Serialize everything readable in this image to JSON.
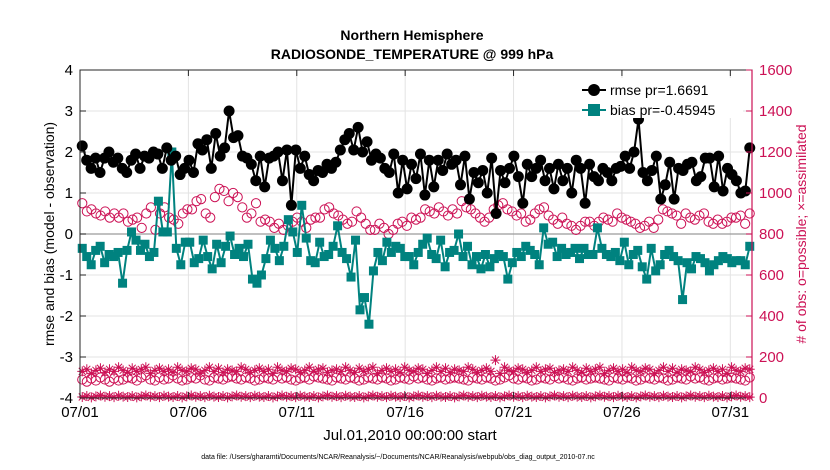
{
  "chart_data": {
    "type": "line",
    "title": "Northern Hemisphere",
    "subtitle": "RADIOSONDE_TEMPERATURE @ 999 hPa",
    "xlabel": "Jul.01,2010 00:00:00 start",
    "ylabel_left": "rmse and bias (model - observation)",
    "ylabel_right": "# of obs: o=possible; ×=assimilated",
    "footer": "data file: /Users/gharamti/Documents/NCAR/Reanalysis/~/Documents/NCAR/Reanalysis/webpub/obs_diag_output_2010-07.nc",
    "x_ticks": [
      "07/01",
      "07/06",
      "07/11",
      "07/16",
      "07/21",
      "07/26",
      "07/31"
    ],
    "x_tick_days": [
      1,
      6,
      11,
      16,
      21,
      26,
      31
    ],
    "xlim_days": [
      1,
      32
    ],
    "ylim_left": [
      -4,
      4
    ],
    "yticks_left": [
      "4",
      "3",
      "2",
      "1",
      "0",
      "-1",
      "-2",
      "-3",
      "-4"
    ],
    "ylim_right": [
      0,
      1600
    ],
    "yticks_right": [
      "1600",
      "1400",
      "1200",
      "1000",
      "800",
      "600",
      "400",
      "200",
      "0"
    ],
    "grid": true,
    "legend_placement": "top-right",
    "colors": {
      "rmse": "#000000",
      "bias": "#00827f",
      "obs": "#cc1155",
      "right_axis": "#cc1155"
    },
    "series": [
      {
        "name": "rmse pr=1.6691",
        "key": "rmse",
        "values": [
          2.15,
          1.8,
          1.6,
          1.85,
          1.5,
          1.85,
          2.0,
          1.75,
          1.85,
          1.6,
          1.5,
          1.8,
          1.95,
          1.6,
          1.9,
          1.85,
          2.0,
          1.95,
          1.6,
          2.1,
          1.8,
          1.9,
          1.45,
          1.6,
          1.8,
          1.5,
          2.2,
          2.05,
          2.3,
          1.6,
          2.45,
          1.9,
          2.1,
          3.0,
          2.35,
          2.4,
          1.9,
          1.85,
          1.7,
          1.3,
          1.9,
          1.15,
          1.85,
          1.9,
          2.0,
          1.3,
          2.05,
          0.7,
          2.05,
          1.6,
          1.9,
          1.45,
          1.3,
          1.55,
          1.5,
          1.7,
          1.6,
          1.75,
          2.05,
          2.3,
          2.45,
          2.05,
          2.6,
          2.0,
          2.25,
          1.8,
          1.95,
          1.85,
          1.6,
          1.5,
          1.95,
          1.0,
          1.8,
          1.1,
          1.7,
          1.35,
          1.95,
          0.95,
          1.8,
          1.15,
          1.8,
          1.55,
          1.95,
          1.7,
          1.8,
          1.2,
          1.9,
          0.85,
          1.5,
          1.25,
          1.55,
          1.0,
          1.85,
          0.5,
          1.55,
          1.25,
          1.6,
          1.9,
          1.4,
          0.75,
          1.7,
          1.4,
          1.6,
          1.8,
          1.3,
          1.6,
          1.1,
          1.7,
          1.3,
          1.6,
          1.0,
          1.8,
          1.6,
          0.75,
          1.7,
          1.4,
          1.3,
          1.6,
          1.5,
          1.3,
          1.6,
          1.65,
          1.9,
          1.6,
          2.0,
          2.8,
          1.5,
          1.3,
          1.55,
          1.9,
          0.85,
          1.2,
          1.75,
          0.85,
          1.6,
          1.55,
          1.7,
          1.75,
          1.3,
          1.4,
          1.85,
          1.85,
          1.15,
          1.9,
          1.05,
          1.6,
          1.45,
          1.3,
          1.0,
          1.05,
          2.1
        ]
      },
      {
        "name": "bias pr=-0.45945",
        "key": "bias",
        "values": [
          -0.35,
          -0.55,
          -0.75,
          -0.4,
          -0.3,
          -0.7,
          -0.5,
          -0.55,
          -0.45,
          -1.2,
          -0.4,
          0.05,
          -0.15,
          -0.4,
          -0.25,
          -0.55,
          -0.45,
          0.8,
          0.05,
          0.05,
          2.0,
          -0.35,
          -0.75,
          -0.2,
          -0.2,
          -0.7,
          -0.6,
          -0.15,
          -0.55,
          -0.85,
          -0.25,
          -0.7,
          -0.3,
          -0.05,
          -0.5,
          -0.35,
          -0.55,
          -0.25,
          -1.1,
          -1.2,
          -1.0,
          -0.6,
          -0.15,
          -0.35,
          -0.65,
          -0.3,
          0.35,
          0.05,
          -0.45,
          0.7,
          -0.1,
          -0.65,
          -0.7,
          -0.2,
          -0.55,
          -0.5,
          -0.3,
          0.2,
          -0.45,
          -0.6,
          -1.05,
          -0.15,
          -1.85,
          -1.55,
          -2.2,
          -0.9,
          -0.45,
          -0.65,
          -0.2,
          -0.45,
          -0.3,
          -0.35,
          -0.55,
          -0.55,
          -0.75,
          -0.45,
          -0.25,
          -0.1,
          -0.5,
          -0.6,
          -0.15,
          -0.8,
          -0.45,
          -0.4,
          0.0,
          -0.55,
          -0.3,
          -0.75,
          -0.55,
          -0.85,
          -0.5,
          -0.8,
          -0.6,
          -0.5,
          -0.55,
          -1.1,
          -0.7,
          -0.45,
          -0.55,
          -0.3,
          -0.4,
          -0.5,
          -0.75,
          0.15,
          -0.25,
          -0.2,
          -0.55,
          -0.35,
          -0.5,
          -0.45,
          -0.35,
          -0.6,
          -0.35,
          -0.5,
          -0.5,
          0.15,
          -0.35,
          -0.5,
          -0.55,
          -0.45,
          -0.65,
          -0.2,
          -0.75,
          -0.5,
          -0.4,
          -0.8,
          -1.1,
          -0.35,
          -0.9,
          -0.75,
          -0.5,
          -0.4,
          -0.55,
          -0.65,
          -1.6,
          -0.7,
          -0.85,
          -0.55,
          -0.6,
          -0.7,
          -0.9,
          -0.75,
          -0.65,
          -0.55,
          -0.6,
          -0.7,
          -0.65,
          -0.65,
          -0.75,
          -0.3
        ]
      },
      {
        "name": "",
        "key": "possible_upper",
        "marker": "open-circle",
        "values": [
          950,
          910,
          920,
          900,
          890,
          910,
          880,
          900,
          880,
          900,
          860,
          870,
          880,
          830,
          900,
          930,
          820,
          900,
          930,
          880,
          870,
          850,
          900,
          920,
          920,
          960,
          970,
          900,
          880,
          980,
          1020,
          1010,
          960,
          1000,
          980,
          930,
          880,
          900,
          950,
          860,
          870,
          860,
          830,
          850,
          820,
          840,
          860,
          880,
          860,
          830,
          870,
          880,
          880,
          920,
          930,
          900,
          890,
          870,
          850,
          860,
          910,
          880,
          850,
          820,
          820,
          850,
          830,
          800,
          820,
          850,
          860,
          840,
          880,
          870,
          880,
          920,
          910,
          900,
          930,
          910,
          890,
          920,
          900,
          960,
          930,
          920,
          900,
          880,
          860,
          880,
          920,
          940,
          950,
          920,
          910,
          890,
          900,
          860,
          870,
          900,
          920,
          930,
          890,
          870,
          850,
          880,
          850,
          840,
          820,
          840,
          860,
          860,
          840,
          860,
          880,
          870,
          860,
          900,
          880,
          870,
          860,
          850,
          830,
          840,
          860,
          830,
          870,
          920,
          910,
          900,
          890,
          850,
          900,
          880,
          870,
          890,
          900,
          860,
          850,
          870,
          850,
          860,
          880,
          880,
          890,
          850,
          900
        ]
      },
      {
        "name": "",
        "key": "possible_lower",
        "marker": "open-circle",
        "values": [
          90,
          80,
          95,
          85,
          100,
          90,
          80,
          95,
          85,
          90,
          100,
          95,
          85,
          100,
          110,
          90,
          85,
          100,
          90,
          95,
          110,
          95,
          85,
          90,
          100,
          95,
          110,
          90,
          85,
          100,
          95,
          90,
          100,
          105,
          95,
          90,
          100,
          95,
          85,
          90,
          100,
          95,
          90,
          105,
          95,
          100,
          90,
          85,
          95,
          100,
          90,
          105,
          100,
          95,
          90,
          85,
          100,
          95,
          90,
          100,
          95,
          85,
          90,
          100,
          95,
          90,
          100,
          95,
          85,
          90,
          100,
          95,
          90,
          105,
          95,
          100,
          90,
          85,
          95,
          100,
          90,
          95,
          100,
          95,
          90,
          85,
          100,
          95,
          90,
          100,
          95,
          85,
          90,
          100,
          110,
          95,
          90,
          100,
          95,
          85,
          90,
          100,
          95,
          90,
          105,
          95,
          100,
          90,
          85,
          95,
          100,
          90,
          95,
          100,
          95,
          90,
          85,
          100,
          95,
          90,
          100,
          95,
          85,
          90,
          100,
          95,
          90,
          100,
          95,
          85,
          90,
          100,
          95,
          90,
          105,
          95,
          100,
          90,
          85,
          95,
          100,
          90,
          95,
          100,
          95,
          90,
          85,
          100
        ]
      },
      {
        "name": "",
        "key": "assimilated_upper",
        "marker": "asterisk",
        "values": [
          130,
          140,
          120,
          135,
          145,
          125,
          140,
          130,
          150,
          135,
          125,
          145,
          130,
          140,
          150,
          120,
          135,
          145,
          130,
          140,
          125,
          150,
          135,
          130,
          145,
          140,
          120,
          135,
          150,
          130,
          145,
          125,
          140,
          135,
          130,
          150,
          140,
          125,
          135,
          145,
          130,
          140,
          120,
          150,
          135,
          130,
          145,
          140,
          125,
          135,
          150,
          130,
          140,
          145,
          125,
          135,
          140,
          130,
          150,
          135,
          125,
          145,
          130,
          140,
          150,
          120,
          135,
          145,
          130,
          140,
          125,
          150,
          135,
          130,
          145,
          140,
          120,
          135,
          150,
          130,
          145,
          125,
          140,
          135,
          130,
          150,
          140,
          125,
          135,
          145,
          130,
          185,
          120,
          150,
          135,
          130,
          145,
          140,
          125,
          135,
          150,
          130,
          140,
          145,
          125,
          135,
          140,
          130,
          150,
          135,
          125,
          145,
          130,
          140,
          150,
          120,
          135,
          145,
          130,
          140,
          125,
          150,
          135,
          130,
          145,
          140,
          120,
          135,
          150,
          130,
          145,
          125,
          140,
          135,
          130,
          150,
          140,
          125,
          135,
          145,
          130,
          140,
          120,
          150,
          135,
          130,
          145,
          140
        ]
      },
      {
        "name": "",
        "key": "assimilated_lower",
        "marker": "asterisk",
        "values": [
          5,
          10,
          3,
          8,
          12,
          6,
          9,
          4,
          11,
          7,
          5,
          10,
          3,
          8,
          12,
          6,
          9,
          4,
          11,
          7,
          5,
          10,
          3,
          8,
          12,
          6,
          9,
          4,
          11,
          7,
          5,
          10,
          3,
          8,
          12,
          6,
          9,
          4,
          11,
          7,
          5,
          10,
          3,
          8,
          12,
          6,
          9,
          4,
          11,
          7,
          5,
          10,
          3,
          8,
          12,
          6,
          9,
          4,
          11,
          7,
          5,
          10,
          3,
          8,
          12,
          6,
          9,
          4,
          11,
          7,
          5,
          10,
          3,
          8,
          12,
          6,
          9,
          4,
          11,
          7,
          5,
          10,
          3,
          8,
          12,
          6,
          9,
          4,
          11,
          7,
          5,
          10,
          3,
          8,
          12,
          6,
          9,
          4,
          11,
          7,
          5,
          10,
          3,
          8,
          12,
          6,
          9,
          4,
          11,
          7,
          5,
          10,
          3,
          8,
          12,
          6,
          9,
          4,
          11,
          7,
          5,
          10,
          3,
          8,
          12,
          6,
          9,
          4,
          11,
          7,
          5,
          10,
          3,
          8,
          12,
          6,
          9,
          4,
          11,
          7,
          5,
          10,
          3,
          8,
          12,
          6,
          9,
          4
        ]
      }
    ]
  }
}
